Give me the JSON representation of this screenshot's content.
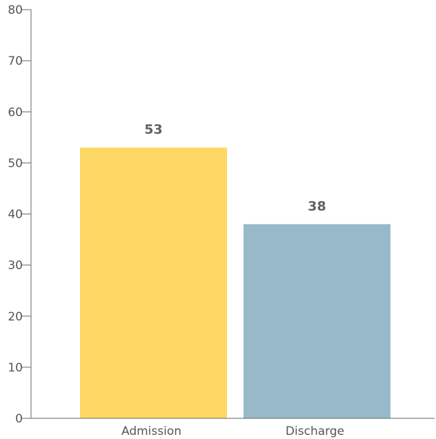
{
  "chart_data": {
    "type": "bar",
    "categories": [
      "Admission",
      "Discharge"
    ],
    "values": [
      53,
      38
    ],
    "data_labels": [
      "53",
      "38"
    ],
    "colors": [
      "#FDD865",
      "#97B9C9"
    ],
    "title": "",
    "xlabel": "",
    "ylabel": "",
    "ylim": [
      0,
      80
    ],
    "yticks": [
      0,
      10,
      20,
      30,
      40,
      50,
      60,
      70,
      80
    ],
    "ytick_labels": [
      "0",
      "10",
      "20",
      "30",
      "40",
      "50",
      "60",
      "70",
      "80"
    ],
    "grid": false,
    "legend": "none"
  }
}
